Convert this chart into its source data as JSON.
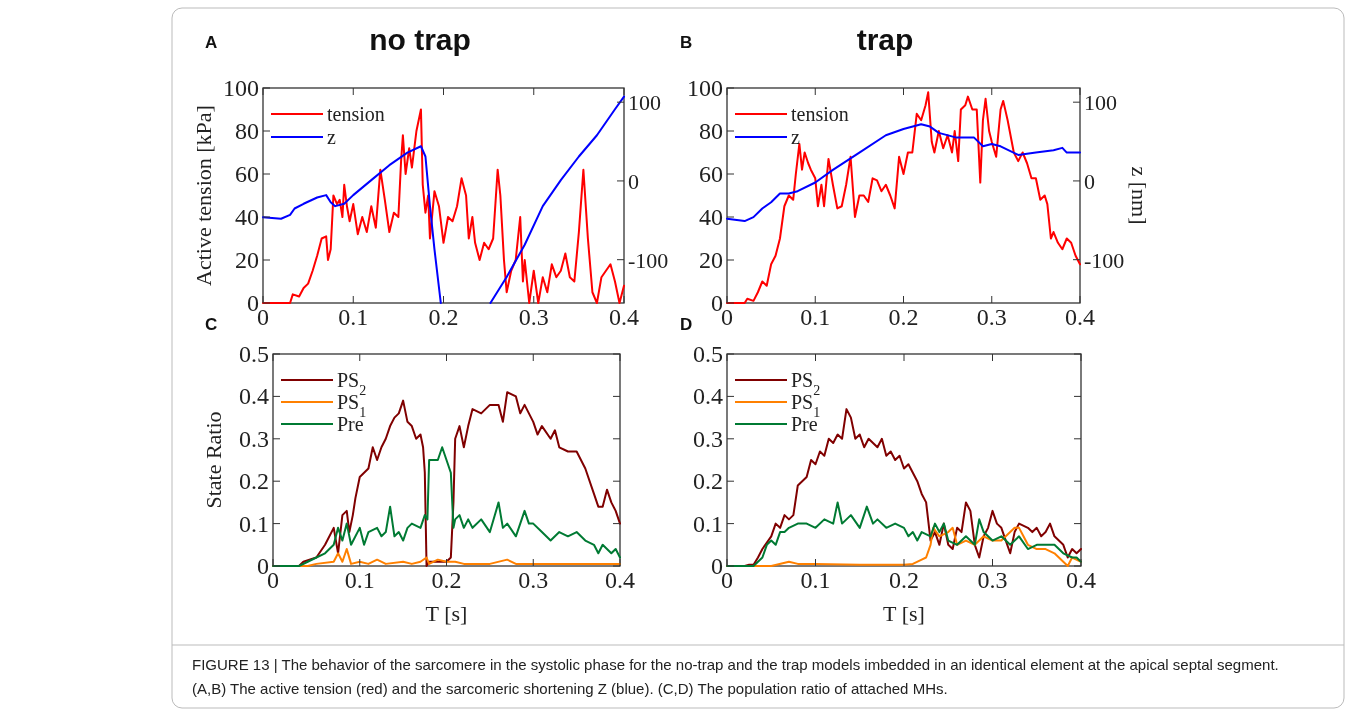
{
  "chart_data": [
    {
      "type": "line",
      "title": "no trap",
      "ylabel": "Active tension [kPa]",
      "annotations": [
        "A"
      ],
      "xlim": [
        0,
        0.4
      ],
      "xticks": [
        0,
        0.1,
        0.2,
        0.3,
        0.4
      ],
      "ylim": [
        0,
        100
      ],
      "yticks": [
        0,
        20,
        40,
        60,
        80,
        100
      ],
      "y2lim": [
        -155,
        118
      ],
      "y2ticks": [
        -100,
        0,
        100
      ],
      "legend": "top left",
      "grid": false,
      "line_style": "solid",
      "marker": "none",
      "series": [
        {
          "name": "tension",
          "color": "#ff0000",
          "x": [
            0,
            0.03,
            0.033,
            0.04,
            0.045,
            0.05,
            0.055,
            0.06,
            0.065,
            0.07,
            0.072,
            0.075,
            0.078,
            0.082,
            0.085,
            0.088,
            0.09,
            0.093,
            0.096,
            0.1,
            0.105,
            0.11,
            0.115,
            0.12,
            0.125,
            0.13,
            0.135,
            0.14,
            0.145,
            0.15,
            0.153,
            0.155,
            0.158,
            0.162,
            0.165,
            0.17,
            0.175,
            0.177,
            0.18,
            0.183,
            0.185,
            0.19,
            0.195,
            0.2,
            0.205,
            0.21,
            0.215,
            0.22,
            0.225,
            0.228,
            0.232,
            0.235,
            0.24,
            0.245,
            0.25,
            0.255,
            0.26,
            0.263,
            0.267,
            0.27,
            0.275,
            0.28,
            0.285,
            0.288,
            0.29,
            0.295,
            0.3,
            0.305,
            0.31,
            0.315,
            0.32,
            0.325,
            0.33,
            0.335,
            0.34,
            0.345,
            0.35,
            0.355,
            0.36,
            0.365,
            0.37,
            0.375,
            0.38,
            0.385,
            0.39,
            0.395,
            0.4
          ],
          "values": [
            0,
            0,
            4,
            3,
            7,
            9,
            15,
            22,
            30,
            31,
            20,
            25,
            50,
            46,
            48,
            40,
            55,
            45,
            38,
            46,
            32,
            40,
            33,
            45,
            35,
            62,
            48,
            33,
            42,
            40,
            66,
            78,
            60,
            72,
            63,
            80,
            90,
            55,
            42,
            50,
            30,
            52,
            45,
            28,
            40,
            38,
            45,
            58,
            50,
            30,
            40,
            28,
            20,
            28,
            25,
            30,
            62,
            50,
            20,
            5,
            15,
            20,
            40,
            10,
            20,
            0,
            15,
            0,
            12,
            5,
            18,
            12,
            15,
            23,
            12,
            10,
            33,
            62,
            30,
            5,
            0,
            12,
            15,
            18,
            10,
            0,
            8
          ]
        },
        {
          "name": "z",
          "color": "#0000ff",
          "axis": "y2",
          "x": [
            0,
            0.02,
            0.03,
            0.035,
            0.045,
            0.06,
            0.07,
            0.075,
            0.08,
            0.09,
            0.1,
            0.12,
            0.14,
            0.16,
            0.175,
            0.18,
            0.185,
            0.19,
            0.197,
            0.22,
            0.252,
            0.27,
            0.29,
            0.31,
            0.33,
            0.35,
            0.37,
            0.39,
            0.4
          ],
          "values": [
            -46,
            -48,
            -43,
            -35,
            -29,
            -21,
            -18,
            -27,
            -32,
            -29,
            -18,
            1,
            20,
            36,
            44,
            31,
            -32,
            -87,
            -155,
            null,
            -155,
            -122,
            -81,
            -32,
            1,
            31,
            58,
            91,
            107
          ]
        }
      ]
    },
    {
      "type": "line",
      "title": "trap",
      "y2label": "z [nm]",
      "annotations": [
        "B"
      ],
      "xlim": [
        0,
        0.4
      ],
      "xticks": [
        0,
        0.1,
        0.2,
        0.3,
        0.4
      ],
      "ylim": [
        0,
        100
      ],
      "yticks": [
        0,
        20,
        40,
        60,
        80,
        100
      ],
      "y2lim": [
        -155,
        118
      ],
      "y2ticks": [
        -100,
        0,
        100
      ],
      "legend": "top left",
      "grid": false,
      "line_style": "solid",
      "marker": "none",
      "series": [
        {
          "name": "tension",
          "color": "#ff0000",
          "x": [
            0,
            0.02,
            0.023,
            0.03,
            0.035,
            0.04,
            0.045,
            0.05,
            0.055,
            0.06,
            0.065,
            0.07,
            0.075,
            0.078,
            0.082,
            0.085,
            0.088,
            0.092,
            0.095,
            0.1,
            0.103,
            0.107,
            0.11,
            0.115,
            0.12,
            0.125,
            0.13,
            0.135,
            0.14,
            0.145,
            0.15,
            0.155,
            0.16,
            0.165,
            0.17,
            0.175,
            0.18,
            0.185,
            0.19,
            0.195,
            0.2,
            0.205,
            0.21,
            0.215,
            0.22,
            0.225,
            0.228,
            0.232,
            0.235,
            0.24,
            0.245,
            0.25,
            0.255,
            0.258,
            0.262,
            0.265,
            0.27,
            0.273,
            0.278,
            0.283,
            0.287,
            0.29,
            0.293,
            0.297,
            0.3,
            0.305,
            0.31,
            0.313,
            0.318,
            0.325,
            0.33,
            0.335,
            0.34,
            0.345,
            0.35,
            0.355,
            0.36,
            0.363,
            0.367,
            0.37,
            0.375,
            0.38,
            0.385,
            0.39,
            0.395,
            0.4
          ],
          "values": [
            0,
            0,
            2,
            1,
            5,
            10,
            8,
            18,
            22,
            30,
            45,
            50,
            48,
            60,
            74,
            62,
            70,
            65,
            62,
            58,
            45,
            55,
            45,
            67,
            55,
            44,
            45,
            55,
            68,
            40,
            50,
            50,
            47,
            58,
            57,
            52,
            55,
            50,
            44,
            68,
            60,
            70,
            70,
            88,
            85,
            92,
            98,
            75,
            70,
            80,
            72,
            78,
            70,
            80,
            66,
            90,
            92,
            96,
            90,
            90,
            56,
            85,
            95,
            80,
            75,
            68,
            90,
            94,
            85,
            70,
            66,
            70,
            65,
            58,
            58,
            48,
            50,
            46,
            30,
            33,
            28,
            25,
            30,
            28,
            22,
            18
          ]
        },
        {
          "name": "z",
          "color": "#0000ff",
          "axis": "y2",
          "x": [
            0,
            0.02,
            0.03,
            0.04,
            0.05,
            0.06,
            0.07,
            0.08,
            0.1,
            0.12,
            0.15,
            0.18,
            0.2,
            0.22,
            0.23,
            0.24,
            0.26,
            0.28,
            0.29,
            0.3,
            0.31,
            0.33,
            0.35,
            0.37,
            0.38,
            0.385,
            0.4
          ],
          "values": [
            -48,
            -51,
            -46,
            -35,
            -27,
            -16,
            -16,
            -13,
            -2,
            14,
            36,
            58,
            66,
            72,
            69,
            61,
            55,
            55,
            44,
            47,
            44,
            33,
            36,
            39,
            42,
            36,
            36
          ]
        }
      ]
    },
    {
      "type": "line",
      "ylabel": "State Ratio",
      "xlabel": "T [s]",
      "annotations": [
        "C"
      ],
      "xlim": [
        0,
        0.4
      ],
      "xticks": [
        0,
        0.1,
        0.2,
        0.3,
        0.4
      ],
      "ylim": [
        0,
        0.5
      ],
      "yticks": [
        0,
        0.1,
        0.2,
        0.3,
        0.4,
        0.5
      ],
      "legend": "top left",
      "grid": false,
      "line_style": "solid",
      "marker": "none",
      "series": [
        {
          "name": "PS$_{2}$",
          "color": "#800000",
          "x": [
            0,
            0.03,
            0.035,
            0.05,
            0.06,
            0.07,
            0.075,
            0.08,
            0.085,
            0.088,
            0.092,
            0.095,
            0.1,
            0.105,
            0.11,
            0.115,
            0.12,
            0.125,
            0.13,
            0.135,
            0.14,
            0.145,
            0.15,
            0.155,
            0.16,
            0.165,
            0.17,
            0.173,
            0.175,
            0.177,
            0.18,
            0.19,
            0.2,
            0.205,
            0.208,
            0.21,
            0.215,
            0.22,
            0.225,
            0.23,
            0.24,
            0.25,
            0.26,
            0.265,
            0.27,
            0.28,
            0.285,
            0.29,
            0.3,
            0.305,
            0.31,
            0.32,
            0.325,
            0.33,
            0.34,
            0.35,
            0.36,
            0.37,
            0.375,
            0.38,
            0.385,
            0.39,
            0.395,
            0.4
          ],
          "values": [
            0,
            0,
            0.01,
            0.02,
            0.05,
            0.09,
            0.03,
            0.12,
            0.13,
            0.08,
            0.12,
            0.16,
            0.21,
            0.22,
            0.23,
            0.28,
            0.25,
            0.28,
            0.3,
            0.33,
            0.35,
            0.36,
            0.39,
            0.34,
            0.33,
            0.3,
            0.31,
            0.28,
            0.22,
            0,
            0.01,
            0.01,
            0.01,
            0.02,
            0.15,
            0.3,
            0.33,
            0.28,
            0.33,
            0.37,
            0.36,
            0.38,
            0.38,
            0.34,
            0.41,
            0.4,
            0.36,
            0.38,
            0.34,
            0.31,
            0.33,
            0.3,
            0.32,
            0.28,
            0.27,
            0.27,
            0.23,
            0.17,
            0.14,
            0.14,
            0.18,
            0.15,
            0.13,
            0.1
          ]
        },
        {
          "name": "PS$_{1}$",
          "color": "#ff8000",
          "x": [
            0,
            0.03,
            0.04,
            0.05,
            0.07,
            0.075,
            0.08,
            0.085,
            0.09,
            0.1,
            0.11,
            0.12,
            0.13,
            0.15,
            0.16,
            0.17,
            0.177,
            0.18,
            0.19,
            0.2,
            0.21,
            0.22,
            0.25,
            0.27,
            0.28,
            0.3,
            0.35,
            0.4
          ],
          "values": [
            0,
            0,
            0,
            0.005,
            0.01,
            0.03,
            0.01,
            0.04,
            0.005,
            0.01,
            0.005,
            0.015,
            0.005,
            0.01,
            0.005,
            0.01,
            0.02,
            0.005,
            0.015,
            0.01,
            0.01,
            0.005,
            0.005,
            0.015,
            0.005,
            0.005,
            0.005,
            0.005
          ]
        },
        {
          "name": "Pre",
          "color": "#007a33",
          "x": [
            0,
            0.03,
            0.04,
            0.05,
            0.06,
            0.07,
            0.075,
            0.08,
            0.085,
            0.09,
            0.1,
            0.105,
            0.11,
            0.12,
            0.125,
            0.13,
            0.135,
            0.14,
            0.145,
            0.15,
            0.155,
            0.16,
            0.17,
            0.175,
            0.178,
            0.18,
            0.19,
            0.195,
            0.2,
            0.205,
            0.208,
            0.21,
            0.215,
            0.22,
            0.225,
            0.23,
            0.24,
            0.25,
            0.26,
            0.265,
            0.27,
            0.28,
            0.29,
            0.295,
            0.3,
            0.31,
            0.32,
            0.33,
            0.34,
            0.35,
            0.36,
            0.37,
            0.375,
            0.38,
            0.385,
            0.39,
            0.395,
            0.4
          ],
          "values": [
            0,
            0,
            0.01,
            0.02,
            0.03,
            0.05,
            0.09,
            0.06,
            0.1,
            0.05,
            0.09,
            0.05,
            0.08,
            0.09,
            0.07,
            0.08,
            0.14,
            0.07,
            0.08,
            0.06,
            0.09,
            0.1,
            0.09,
            0.12,
            0.11,
            0.25,
            0.25,
            0.28,
            0.25,
            0.22,
            0.09,
            0.11,
            0.12,
            0.09,
            0.11,
            0.09,
            0.11,
            0.08,
            0.15,
            0.09,
            0.1,
            0.07,
            0.13,
            0.1,
            0.1,
            0.08,
            0.06,
            0.08,
            0.07,
            0.08,
            0.06,
            0.05,
            0.03,
            0.05,
            0.04,
            0.03,
            0.04,
            0.02
          ]
        }
      ]
    },
    {
      "type": "line",
      "xlabel": "T [s]",
      "annotations": [
        "D",
        "FIGURE 13 | The behavior of the sarcomere in the systolic phase for the no-trap and the trap models imbedded in an identical element at the apical septal segment.",
        "(A,B) The active tension (red) and the sarcomeric shortening Z (blue). (C,D) The population ratio of attached MHs."
      ],
      "xlim": [
        0,
        0.4
      ],
      "xticks": [
        0,
        0.1,
        0.2,
        0.3,
        0.4
      ],
      "ylim": [
        0,
        0.5
      ],
      "yticks": [
        0,
        0.1,
        0.2,
        0.3,
        0.4,
        0.5
      ],
      "legend": "top left",
      "grid": false,
      "line_style": "solid",
      "marker": "none",
      "series": [
        {
          "name": "PS$_{2}$",
          "color": "#800000",
          "x": [
            0,
            0.02,
            0.025,
            0.03,
            0.035,
            0.04,
            0.05,
            0.055,
            0.06,
            0.065,
            0.07,
            0.075,
            0.08,
            0.085,
            0.09,
            0.095,
            0.1,
            0.105,
            0.11,
            0.115,
            0.12,
            0.125,
            0.13,
            0.135,
            0.14,
            0.145,
            0.15,
            0.155,
            0.16,
            0.17,
            0.175,
            0.18,
            0.185,
            0.19,
            0.195,
            0.2,
            0.205,
            0.21,
            0.215,
            0.22,
            0.225,
            0.23,
            0.235,
            0.24,
            0.245,
            0.25,
            0.255,
            0.26,
            0.265,
            0.27,
            0.275,
            0.28,
            0.285,
            0.29,
            0.295,
            0.3,
            0.305,
            0.31,
            0.315,
            0.32,
            0.325,
            0.33,
            0.34,
            0.345,
            0.35,
            0.355,
            0.36,
            0.365,
            0.37,
            0.375,
            0.38,
            0.385,
            0.39,
            0.395,
            0.4
          ],
          "values": [
            0,
            0,
            0.003,
            0.003,
            0.02,
            0.04,
            0.07,
            0.1,
            0.09,
            0.12,
            0.11,
            0.12,
            0.19,
            0.2,
            0.21,
            0.25,
            0.24,
            0.27,
            0.26,
            0.3,
            0.29,
            0.31,
            0.3,
            0.37,
            0.35,
            0.3,
            0.31,
            0.28,
            0.3,
            0.28,
            0.3,
            0.26,
            0.27,
            0.25,
            0.26,
            0.23,
            0.24,
            0.22,
            0.2,
            0.17,
            0.15,
            0.06,
            0.08,
            0.05,
            0.1,
            0.05,
            0.04,
            0.09,
            0.08,
            0.15,
            0.13,
            0.05,
            0.02,
            0.07,
            0.09,
            0.13,
            0.1,
            0.09,
            0.06,
            0.03,
            0.08,
            0.1,
            0.09,
            0.08,
            0.09,
            0.07,
            0.08,
            0.1,
            0.07,
            0.06,
            0.05,
            0.02,
            0.04,
            0.03,
            0.04
          ]
        },
        {
          "name": "PS$_{1}$",
          "color": "#ff8000",
          "x": [
            0,
            0.05,
            0.07,
            0.08,
            0.1,
            0.15,
            0.2,
            0.21,
            0.22,
            0.225,
            0.23,
            0.233,
            0.24,
            0.25,
            0.255,
            0.26,
            0.27,
            0.28,
            0.29,
            0.3,
            0.31,
            0.315,
            0.32,
            0.325,
            0.33,
            0.335,
            0.34,
            0.35,
            0.36,
            0.37,
            0.38,
            0.385,
            0.39,
            0.4
          ],
          "values": [
            0,
            0,
            0.01,
            0.005,
            0.005,
            0.003,
            0.003,
            0.005,
            0.015,
            0.02,
            0.05,
            0.09,
            0.07,
            0.08,
            0.09,
            0.05,
            0.06,
            0.05,
            0.07,
            0.06,
            0.06,
            0.07,
            0.08,
            0.09,
            0.09,
            0.07,
            0.05,
            0.04,
            0.04,
            0.03,
            0.01,
            0,
            0.02,
            0.01
          ]
        },
        {
          "name": "Pre",
          "color": "#007a33",
          "x": [
            0,
            0.03,
            0.035,
            0.04,
            0.045,
            0.05,
            0.055,
            0.06,
            0.065,
            0.07,
            0.08,
            0.09,
            0.1,
            0.11,
            0.12,
            0.125,
            0.13,
            0.14,
            0.15,
            0.158,
            0.165,
            0.17,
            0.18,
            0.19,
            0.2,
            0.205,
            0.21,
            0.215,
            0.22,
            0.23,
            0.235,
            0.24,
            0.245,
            0.25,
            0.26,
            0.27,
            0.28,
            0.285,
            0.29,
            0.3,
            0.31,
            0.32,
            0.33,
            0.34,
            0.35,
            0.36,
            0.37,
            0.38,
            0.39,
            0.395,
            0.4
          ],
          "values": [
            0,
            0,
            0.01,
            0.02,
            0.05,
            0.06,
            0.05,
            0.08,
            0.08,
            0.09,
            0.1,
            0.1,
            0.09,
            0.11,
            0.1,
            0.15,
            0.1,
            0.12,
            0.09,
            0.14,
            0.1,
            0.11,
            0.09,
            0.1,
            0.09,
            0.07,
            0.08,
            0.06,
            0.08,
            0.07,
            0.1,
            0.08,
            0.1,
            0.06,
            0.05,
            0.07,
            0.05,
            0.11,
            0.08,
            0.06,
            0.07,
            0.05,
            0.07,
            0.04,
            0.05,
            0.05,
            0.05,
            0.03,
            0.02,
            0.02,
            0.01
          ]
        }
      ]
    }
  ]
}
